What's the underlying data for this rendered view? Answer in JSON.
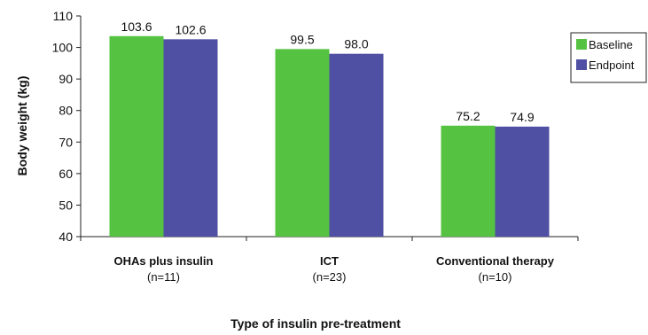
{
  "chart_data": {
    "type": "bar",
    "categories": [
      {
        "name": "OHAs plus insulin",
        "sub": "(n=11)"
      },
      {
        "name": "ICT",
        "sub": "(n=23)"
      },
      {
        "name": "Conventional therapy",
        "sub": "(n=10)"
      }
    ],
    "series": [
      {
        "name": "Baseline",
        "color": "#55c341",
        "values": [
          103.6,
          99.5,
          75.2
        ],
        "labels": [
          "103.6",
          "99.5",
          "75.2"
        ]
      },
      {
        "name": "Endpoint",
        "color": "#4f4fa3",
        "values": [
          102.6,
          98.0,
          74.9
        ],
        "labels": [
          "102.6",
          "98.0",
          "74.9"
        ]
      }
    ],
    "xlabel": "Type of insulin pre-treatment",
    "ylabel": "Body weight (kg)",
    "ylim": [
      40,
      110
    ],
    "yticks": [
      40,
      50,
      60,
      70,
      80,
      90,
      100,
      110
    ],
    "grid": false,
    "legend_position": "right"
  }
}
